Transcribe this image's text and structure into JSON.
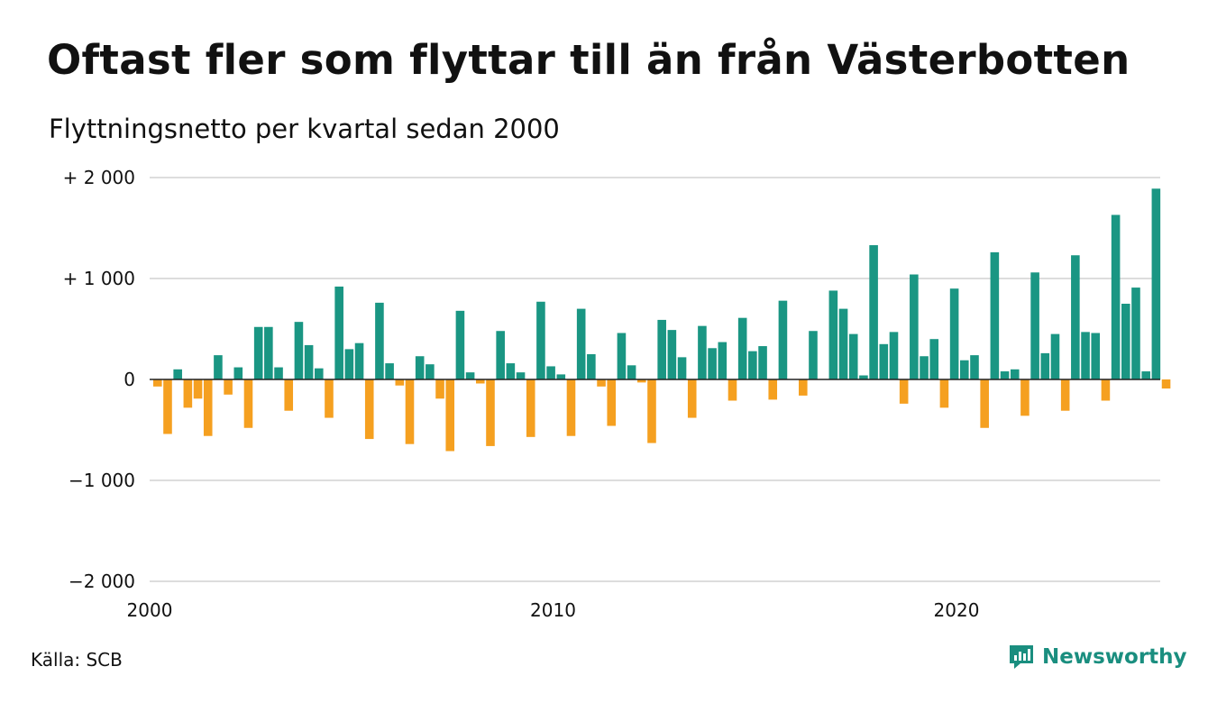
{
  "title": "Oftast fler som flyttar till än från Västerbotten",
  "subtitle": "Flyttningsnetto per kvartal sedan 2000",
  "source": "Källa: SCB",
  "brand": "Newsworthy",
  "colors": {
    "positive": "#1a9683",
    "negative": "#f5a020",
    "grid": "#dddddd",
    "zero_line": "#222222",
    "brand": "#1a8e7f"
  },
  "chart_data": {
    "type": "bar",
    "title": "Oftast fler som flyttar till än från Västerbotten",
    "subtitle": "Flyttningsnetto per kvartal sedan 2000",
    "ylim": [
      -2000,
      2000
    ],
    "y_ticks": [
      {
        "value": 2000,
        "label": "+ 2 000"
      },
      {
        "value": 1000,
        "label": "+ 1 000"
      },
      {
        "value": 0,
        "label": "0"
      },
      {
        "value": -1000,
        "label": "−1 000"
      },
      {
        "value": -2000,
        "label": "−2 000"
      }
    ],
    "x_ticks": [
      {
        "year": 2000,
        "label": "2000"
      },
      {
        "year": 2010,
        "label": "2010"
      },
      {
        "year": 2020,
        "label": "2020"
      }
    ],
    "grid": true,
    "start_year": 2000,
    "values": [
      -70,
      -540,
      100,
      -280,
      -190,
      -560,
      240,
      -150,
      120,
      -480,
      520,
      520,
      120,
      -310,
      570,
      340,
      110,
      -380,
      920,
      300,
      360,
      -590,
      760,
      160,
      -60,
      -640,
      230,
      150,
      -190,
      -710,
      680,
      70,
      -40,
      -660,
      480,
      160,
      70,
      -570,
      770,
      130,
      50,
      -560,
      700,
      250,
      -70,
      -460,
      460,
      140,
      -30,
      -630,
      590,
      490,
      220,
      -380,
      530,
      310,
      370,
      -210,
      610,
      280,
      330,
      -200,
      780,
      0,
      -160,
      480,
      0,
      880,
      700,
      450,
      40,
      1330,
      350,
      470,
      -240,
      1040,
      230,
      400,
      -280,
      900,
      190,
      240,
      -480,
      1260,
      80,
      100,
      -360,
      1060,
      260,
      450,
      -310,
      1230,
      470,
      460,
      -210,
      1630,
      750,
      910,
      80,
      1890,
      -90
    ]
  }
}
